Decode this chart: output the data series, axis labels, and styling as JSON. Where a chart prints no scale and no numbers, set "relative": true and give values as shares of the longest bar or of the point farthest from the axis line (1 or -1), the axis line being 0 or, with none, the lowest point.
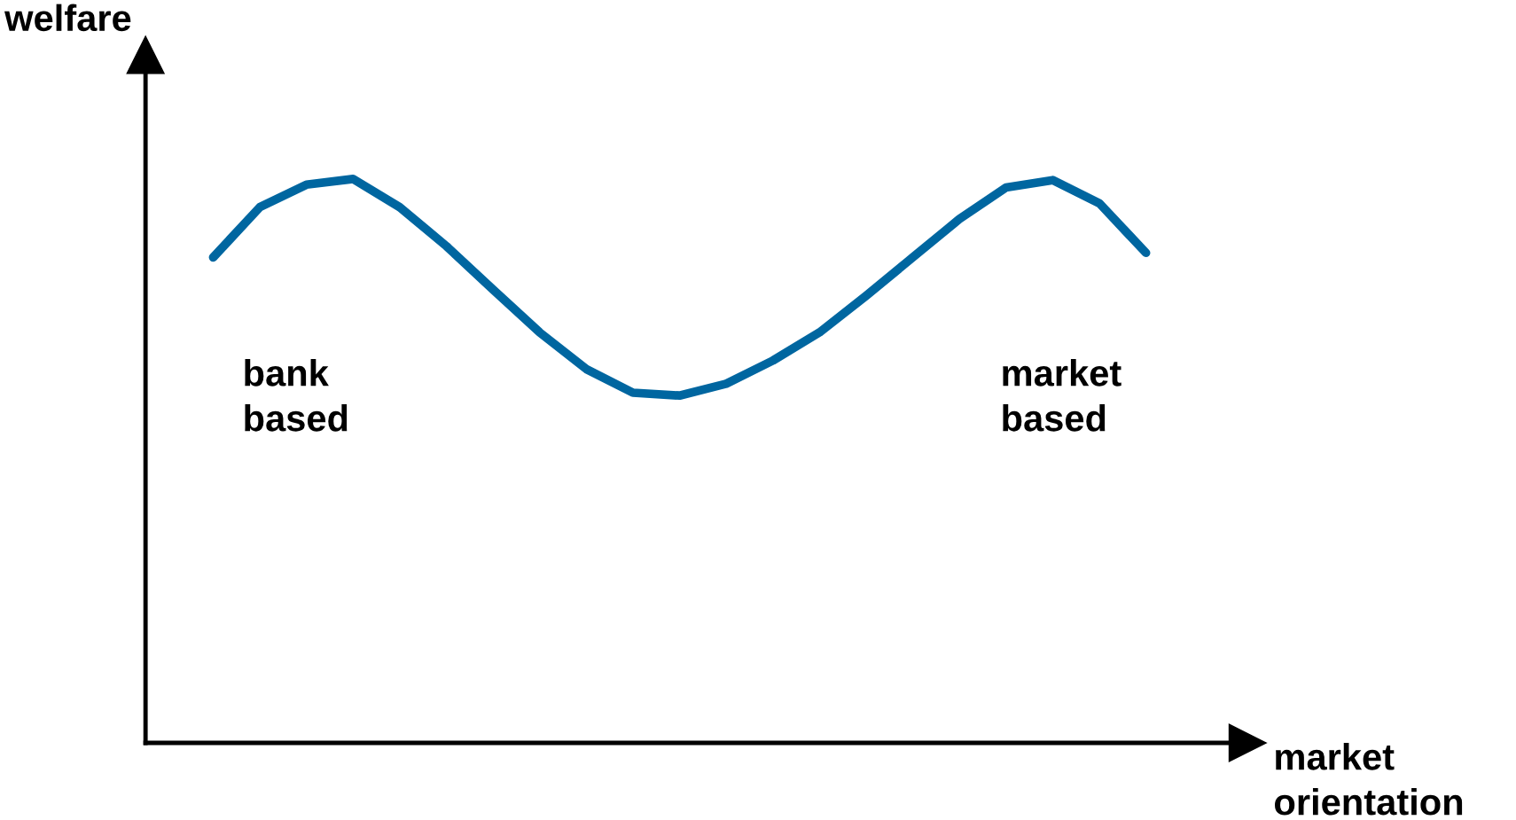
{
  "chart_data": {
    "type": "line",
    "relative": true,
    "xlabel": "market\norientation",
    "ylabel": "welfare",
    "categories": [
      null,
      null,
      null,
      null,
      null,
      null,
      null,
      null,
      null,
      null,
      null,
      null,
      null,
      null,
      null,
      null,
      null,
      null,
      null,
      null,
      null
    ],
    "series": [
      {
        "color": "#0066a0",
        "values": [
          0.861,
          0.95,
          0.99,
          1.0,
          0.95,
          0.881,
          0.804,
          0.728,
          0.663,
          0.621,
          0.616,
          0.637,
          0.678,
          0.728,
          0.793,
          0.861,
          0.929,
          0.985,
          0.998,
          0.957,
          0.869
        ]
      }
    ],
    "annotations": [
      "bank\nbased",
      "market\nbased"
    ]
  }
}
